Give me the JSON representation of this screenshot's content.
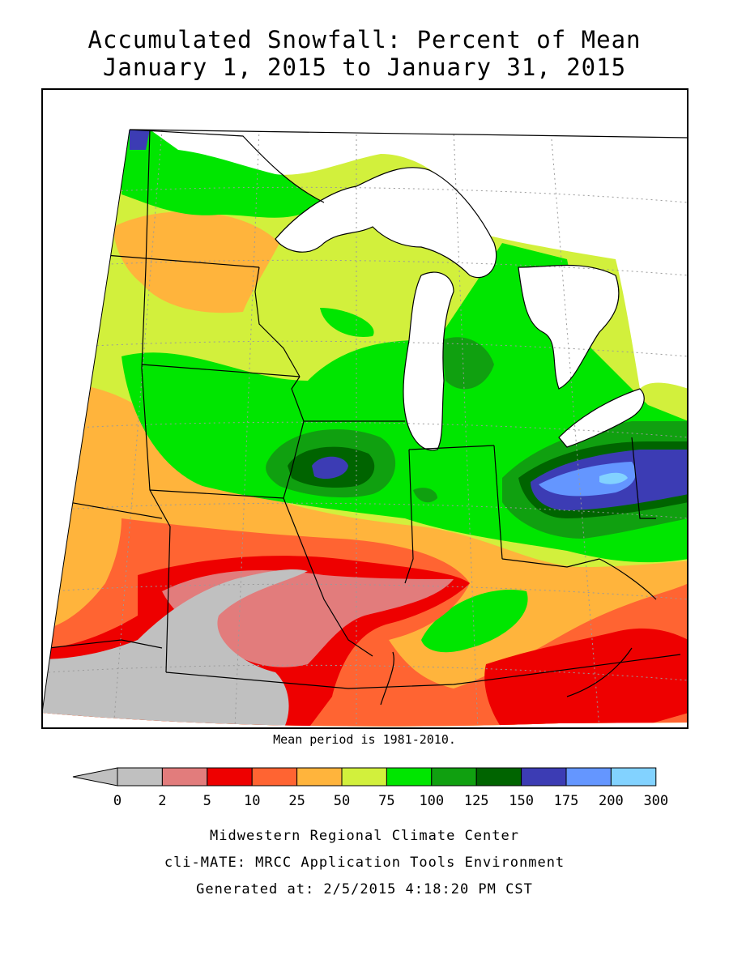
{
  "title": {
    "line1": "Accumulated Snowfall: Percent of Mean",
    "line2": "January 1, 2015 to January 31, 2015"
  },
  "mean_note": "Mean period is 1981-2010.",
  "legend": {
    "tick_labels": [
      "0",
      "2",
      "5",
      "10",
      "25",
      "50",
      "75",
      "100",
      "125",
      "150",
      "175",
      "200",
      "300"
    ],
    "colors": [
      "#c0c0c0",
      "#e27c7c",
      "#ee0000",
      "#ff6432",
      "#ffb43c",
      "#d2f03c",
      "#00e600",
      "#10a010",
      "#006400",
      "#3c3cb4",
      "#6496ff",
      "#82d2ff"
    ],
    "under_color": "#c0c0c0"
  },
  "footer": {
    "line1": "Midwestern Regional Climate Center",
    "line2": "cli-MATE: MRCC Application Tools Environment",
    "line3": "Generated at: 2/5/2015 4:18:20 PM CST"
  },
  "map_colors": {
    "lake": "#ffffff",
    "border": "#000000",
    "grid": "#9a9a9a"
  }
}
